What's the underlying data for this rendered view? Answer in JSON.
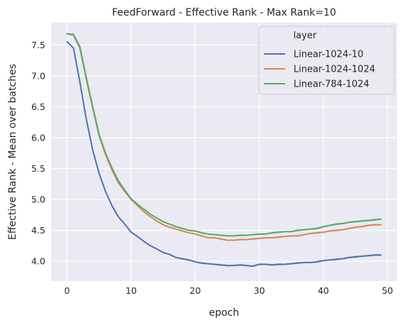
{
  "chart_data": {
    "type": "line",
    "title": "FeedForward - Effective Rank - Max Rank=10",
    "xlabel": "epoch",
    "ylabel": "Effective Rank - Mean over batches",
    "xlim": [
      -2.5,
      51.5
    ],
    "ylim": [
      3.68,
      7.86
    ],
    "xticks": [
      0,
      10,
      20,
      30,
      40,
      50
    ],
    "yticks": [
      4.0,
      4.5,
      5.0,
      5.5,
      6.0,
      6.5,
      7.0,
      7.5
    ],
    "grid": true,
    "legend": {
      "title": "layer",
      "placement": "top-right"
    },
    "x": [
      0,
      1,
      2,
      3,
      4,
      5,
      6,
      7,
      8,
      9,
      10,
      11,
      12,
      13,
      14,
      15,
      16,
      17,
      18,
      19,
      20,
      21,
      22,
      23,
      24,
      25,
      26,
      27,
      28,
      29,
      30,
      31,
      32,
      33,
      34,
      35,
      36,
      37,
      38,
      39,
      40,
      41,
      42,
      43,
      44,
      45,
      46,
      47,
      48,
      49
    ],
    "series": [
      {
        "name": "Linear-1024-10",
        "color": "#4c72b0",
        "values": [
          7.55,
          7.45,
          6.9,
          6.3,
          5.8,
          5.42,
          5.13,
          4.9,
          4.72,
          4.6,
          4.47,
          4.4,
          4.32,
          4.25,
          4.2,
          4.14,
          4.11,
          4.06,
          4.04,
          4.02,
          3.99,
          3.97,
          3.96,
          3.95,
          3.94,
          3.93,
          3.93,
          3.94,
          3.93,
          3.92,
          3.95,
          3.95,
          3.94,
          3.95,
          3.95,
          3.96,
          3.97,
          3.98,
          3.98,
          3.99,
          4.01,
          4.02,
          4.03,
          4.04,
          4.06,
          4.07,
          4.08,
          4.09,
          4.1,
          4.1
        ]
      },
      {
        "name": "Linear-1024-1024",
        "color": "#dd8452",
        "values": [
          7.68,
          7.66,
          7.45,
          6.95,
          6.48,
          6.03,
          5.73,
          5.48,
          5.27,
          5.13,
          5.0,
          4.9,
          4.8,
          4.72,
          4.65,
          4.59,
          4.55,
          4.52,
          4.49,
          4.46,
          4.44,
          4.41,
          4.38,
          4.38,
          4.36,
          4.34,
          4.34,
          4.35,
          4.35,
          4.36,
          4.37,
          4.38,
          4.38,
          4.39,
          4.4,
          4.41,
          4.41,
          4.43,
          4.45,
          4.46,
          4.47,
          4.49,
          4.5,
          4.51,
          4.53,
          4.55,
          4.56,
          4.58,
          4.59,
          4.59
        ]
      },
      {
        "name": "Linear-784-1024",
        "color": "#55a868",
        "values": [
          7.68,
          7.67,
          7.47,
          6.97,
          6.5,
          6.05,
          5.75,
          5.51,
          5.3,
          5.15,
          5.01,
          4.92,
          4.84,
          4.76,
          4.7,
          4.64,
          4.6,
          4.56,
          4.53,
          4.5,
          4.49,
          4.46,
          4.44,
          4.43,
          4.42,
          4.41,
          4.41,
          4.42,
          4.42,
          4.43,
          4.44,
          4.44,
          4.46,
          4.47,
          4.48,
          4.48,
          4.5,
          4.51,
          4.52,
          4.53,
          4.56,
          4.58,
          4.6,
          4.61,
          4.63,
          4.64,
          4.65,
          4.66,
          4.67,
          4.68
        ]
      }
    ]
  }
}
